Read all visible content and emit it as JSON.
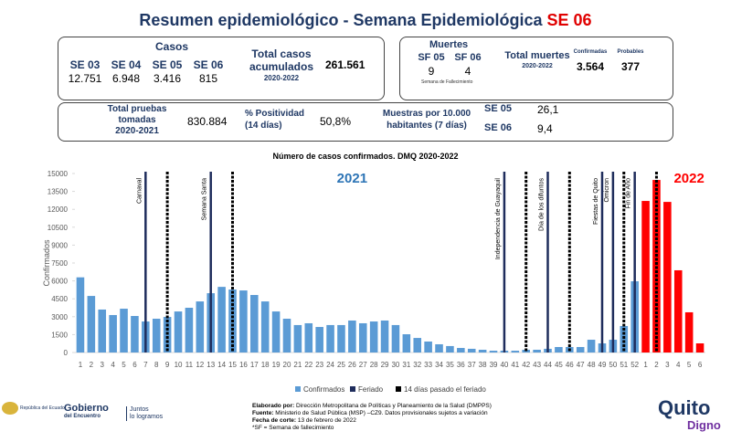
{
  "header": {
    "title": "Resumen epidemiológico - Semana Epidemiológica ",
    "title_highlight": "SE 06"
  },
  "cases": {
    "label": "Casos",
    "weeks": [
      "SE 03",
      "SE 04",
      "SE 05",
      "SE 06"
    ],
    "values": [
      "12.751",
      "6.948",
      "3.416",
      "815"
    ],
    "total_label": [
      "Total casos",
      "acumulados"
    ],
    "total_period": "2020-2022",
    "total": "261.561"
  },
  "deaths": {
    "label": "Muertes",
    "weeks": [
      "SF 05",
      "SF 06"
    ],
    "values": [
      "9",
      "4"
    ],
    "weeks_note": "Semana de Fallecimiento",
    "total_label": "Total muertes",
    "total_period": "2020-2022",
    "confirmed_label": "Confirmadas",
    "confirmed": "3.564",
    "probable_label": "Probables",
    "probable": "377"
  },
  "tests": {
    "label": [
      "Total pruebas",
      "tomadas",
      "2020-2021"
    ],
    "value": "830.884",
    "positivity_label": [
      "% Positividad",
      "(14 días)"
    ],
    "positivity": "50,8%",
    "samples_label": [
      "Muestras por 10.000",
      "habitantes (7 días)"
    ],
    "samples": [
      {
        "week": "SE 05",
        "value": "26,1"
      },
      {
        "week": "SE 06",
        "value": "9,4"
      }
    ]
  },
  "chart_data": {
    "type": "bar",
    "title": "Número de casos confirmados. DMQ 2020-2022",
    "y_label": "Confirmados",
    "categories": [
      "1",
      "2",
      "3",
      "4",
      "5",
      "6",
      "7",
      "8",
      "9",
      "10",
      "11",
      "12",
      "13",
      "14",
      "15",
      "16",
      "17",
      "18",
      "19",
      "20",
      "21",
      "22",
      "23",
      "24",
      "25",
      "26",
      "27",
      "28",
      "29",
      "30",
      "31",
      "32",
      "33",
      "34",
      "35",
      "36",
      "37",
      "38",
      "39",
      "40",
      "41",
      "42",
      "43",
      "44",
      "45",
      "46",
      "47",
      "48",
      "49",
      "50",
      "51",
      "52",
      "1",
      "2",
      "3",
      "4",
      "5",
      "6"
    ],
    "series": [
      {
        "name": "Confirmados",
        "color": "#5b9bd5",
        "values": [
          6300,
          4740,
          3600,
          3140,
          3670,
          3060,
          2600,
          2830,
          2980,
          3440,
          3750,
          4280,
          4970,
          5500,
          5280,
          5200,
          4820,
          4280,
          3440,
          2830,
          2300,
          2450,
          2140,
          2300,
          2300,
          2680,
          2450,
          2600,
          2680,
          2300,
          1530,
          1220,
          920,
          690,
          540,
          380,
          310,
          230,
          150,
          150,
          150,
          230,
          230,
          310,
          460,
          460,
          460,
          1070,
          765,
          1070,
          2220,
          5970,
          12700,
          14460,
          12620,
          6890,
          3370,
          765
        ]
      }
    ],
    "bar_colors": [
      "#5b9bd5",
      "#5b9bd5",
      "#5b9bd5",
      "#5b9bd5",
      "#5b9bd5",
      "#5b9bd5",
      "#5b9bd5",
      "#5b9bd5",
      "#5b9bd5",
      "#5b9bd5",
      "#5b9bd5",
      "#5b9bd5",
      "#5b9bd5",
      "#5b9bd5",
      "#5b9bd5",
      "#5b9bd5",
      "#5b9bd5",
      "#5b9bd5",
      "#5b9bd5",
      "#5b9bd5",
      "#5b9bd5",
      "#5b9bd5",
      "#5b9bd5",
      "#5b9bd5",
      "#5b9bd5",
      "#5b9bd5",
      "#5b9bd5",
      "#5b9bd5",
      "#5b9bd5",
      "#5b9bd5",
      "#5b9bd5",
      "#5b9bd5",
      "#5b9bd5",
      "#5b9bd5",
      "#5b9bd5",
      "#5b9bd5",
      "#5b9bd5",
      "#5b9bd5",
      "#5b9bd5",
      "#5b9bd5",
      "#5b9bd5",
      "#5b9bd5",
      "#5b9bd5",
      "#5b9bd5",
      "#5b9bd5",
      "#5b9bd5",
      "#5b9bd5",
      "#5b9bd5",
      "#5b9bd5",
      "#5b9bd5",
      "#5b9bd5",
      "#5b9bd5",
      "#ff0000",
      "#ff0000",
      "#ff0000",
      "#ff0000",
      "#ff0000",
      "#ff0000"
    ],
    "ylim": [
      0,
      15000
    ],
    "yticks": [
      0,
      1500,
      3000,
      4500,
      6000,
      7500,
      9000,
      10500,
      12000,
      13500,
      15000
    ],
    "year_labels": [
      {
        "label": "2021",
        "color": "#2e75b6",
        "at": 25
      },
      {
        "label": "2022",
        "color": "#ff0000",
        "at": 56
      }
    ],
    "feriado": {
      "name": "Feriado",
      "color": "#1f2d5c",
      "markers": [
        {
          "at": 6,
          "label": "Carnaval"
        },
        {
          "at": 12,
          "label": "Semana Santa"
        },
        {
          "at": 39,
          "label": "Independencia de Guayaquil"
        },
        {
          "at": 43,
          "label": "Día de los difuntos"
        },
        {
          "at": 48,
          "label": "Fiestas de Quito"
        },
        {
          "at": 49,
          "label": "Ómicron"
        },
        {
          "at": 51,
          "label": "Fin de Año"
        }
      ]
    },
    "post_feriado": {
      "name": "14 días pasado el feriado",
      "color": "#000000",
      "markers": [
        8,
        14,
        41,
        45,
        50,
        53
      ]
    }
  },
  "footer": {
    "logos": [
      "República del Ecuador",
      "Gobierno",
      "del Encuentro",
      "Juntos",
      "lo logramos",
      "Quito",
      "Digno"
    ],
    "source": [
      {
        "key": "Elaborado por:",
        "text": " Dirección Metropolitana de Políticas y Planeamiento de la Salud (DMPPS)"
      },
      {
        "key": "Fuente:",
        "text": " Ministerio de Salud Pública (MSP) –CZ9. Datos provisionales sujetos a variación"
      },
      {
        "key": "Fecha de corte:",
        "text": " 13 de febrero de 2022"
      },
      {
        "key": "",
        "text": "*SF = Semana de fallecimiento"
      }
    ]
  }
}
